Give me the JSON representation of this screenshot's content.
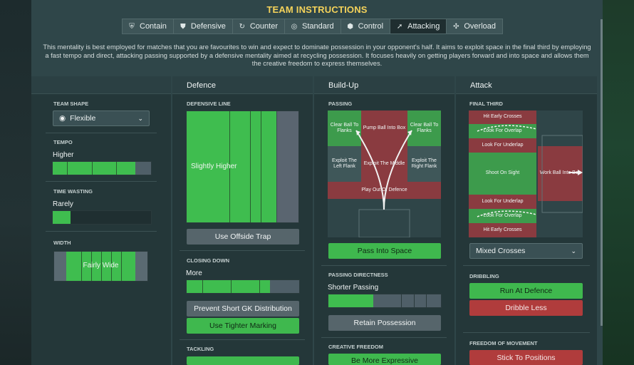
{
  "title": "TEAM INSTRUCTIONS",
  "tabs": [
    {
      "label": "Contain",
      "icon": "shield-crest-icon"
    },
    {
      "label": "Defensive",
      "icon": "shield-icon"
    },
    {
      "label": "Counter",
      "icon": "counter-arrow-icon"
    },
    {
      "label": "Standard",
      "icon": "target-icon"
    },
    {
      "label": "Control",
      "icon": "control-icon"
    },
    {
      "label": "Attacking",
      "icon": "arrow-attack-icon"
    },
    {
      "label": "Overload",
      "icon": "overload-icon"
    }
  ],
  "active_tab": "Attacking",
  "description": "This mentality is best employed for matches that you are favourites to win and expect to dominate possession in your opponent's half. It aims to exploit space in the final third by employing a fast tempo and direct, attacking passing supported by a defensive mentality aimed at recycling possession. It focuses heavily on getting players forward and into space and allows them the creative freedom to express themselves.",
  "team": {
    "shape_label": "TEAM SHAPE",
    "shape_value": "Flexible",
    "tempo_label": "TEMPO",
    "tempo_value": "Higher",
    "tempo_level": 0.84,
    "timewasting_label": "TIME WASTING",
    "timewasting_value": "Rarely",
    "timewasting_level": 0.18,
    "width_label": "WIDTH",
    "width_value": "Fairly Wide"
  },
  "defence": {
    "header": "Defence",
    "line_label": "DEFENSIVE LINE",
    "line_value": "Slightly Higher",
    "offside_button": "Use Offside Trap",
    "closing_label": "CLOSING DOWN",
    "closing_value": "More",
    "closing_level": 0.74,
    "prevent_button": "Prevent Short GK Distribution",
    "marking_button": "Use Tighter Marking",
    "tackling_label": "TACKLING"
  },
  "buildup": {
    "header": "Build-Up",
    "passing_label": "PASSING",
    "zones": {
      "clear_left": "Clear Ball To Flanks",
      "pump": "Pump Ball Into Box",
      "clear_right": "Clear Ball To Flanks",
      "exploit_left": "Exploit The Left Flank",
      "exploit_middle": "Exploit The Middle",
      "exploit_right": "Exploit The Right Flank",
      "play_out": "Play Out Of Defence"
    },
    "space_button": "Pass Into Space",
    "directness_label": "PASSING DIRECTNESS",
    "directness_value": "Shorter Passing",
    "directness_level": 0.4,
    "retain_button": "Retain Possession",
    "creative_label": "CREATIVE FREEDOM",
    "creative_button": "Be More Expressive"
  },
  "attack": {
    "header": "Attack",
    "final_third_label": "FINAL THIRD",
    "zones": {
      "hit_early_top": "Hit Early Crosses",
      "overlap_top": "Look For Overlap",
      "underlap_top": "Look For Underlap",
      "shoot": "Shoot On Sight",
      "work_into_box": "Work Ball Into Box",
      "underlap_bottom": "Look For Underlap",
      "overlap_bottom": "Look For Overlap",
      "hit_early_bottom": "Hit Early Crosses"
    },
    "crosses_value": "Mixed Crosses",
    "dribbling_label": "DRIBBLING",
    "run_button": "Run At Defence",
    "dribble_button": "Dribble Less",
    "freedom_label": "FREEDOM OF MOVEMENT",
    "positions_button": "Stick To Positions"
  },
  "colors": {
    "accent": "#f4d25a",
    "selected_green": "#3fb84e",
    "selected_red": "#b03c3c"
  }
}
